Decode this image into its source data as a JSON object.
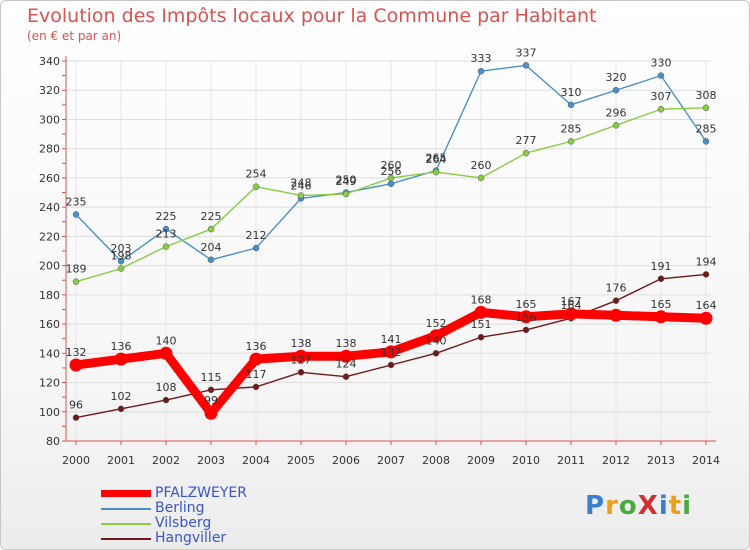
{
  "title": "Evolution des Impôts locaux pour la Commune par Habitant",
  "subtitle": "(en € et par an)",
  "logo_text": "ProXiti",
  "chart_data": {
    "type": "line",
    "x": [
      2000,
      2001,
      2002,
      2003,
      2004,
      2005,
      2006,
      2007,
      2008,
      2009,
      2010,
      2011,
      2012,
      2013,
      2014
    ],
    "ylim": [
      80,
      340
    ],
    "yticks": [
      80,
      100,
      120,
      140,
      160,
      180,
      200,
      220,
      240,
      260,
      280,
      300,
      320,
      340
    ],
    "grid": true,
    "legend_position": "bottom-left",
    "series": [
      {
        "name": "PFALZWEYER",
        "color": "#ff0000",
        "values": [
          132,
          136,
          140,
          99,
          136,
          138,
          138,
          141,
          152,
          168,
          165,
          167,
          166,
          165,
          164
        ],
        "labels": [
          "132",
          "136",
          "140",
          "99",
          "136",
          "138",
          "138",
          "141",
          "152",
          "168",
          "165",
          "167",
          "",
          "165",
          "164"
        ]
      },
      {
        "name": "Berling",
        "color": "#4a90c8",
        "values": [
          235,
          203,
          225,
          204,
          212,
          246,
          250,
          256,
          265,
          333,
          337,
          310,
          320,
          330,
          285
        ],
        "labels": [
          "235",
          "203",
          "225",
          "204",
          "212",
          "246",
          "250",
          "256",
          "265",
          "333",
          "337",
          "310",
          "320",
          "330",
          "285"
        ]
      },
      {
        "name": "Vilsberg",
        "color": "#88cc44",
        "values": [
          189,
          198,
          213,
          225,
          254,
          248,
          249,
          260,
          264,
          260,
          277,
          285,
          296,
          307,
          308
        ],
        "labels": [
          "189",
          "198",
          "213",
          "225",
          "254",
          "248",
          "249",
          "260",
          "264",
          "260",
          "277",
          "285",
          "296",
          "307",
          "308"
        ]
      },
      {
        "name": "Hangviller",
        "color": "#6e1a1a",
        "values": [
          96,
          102,
          108,
          115,
          117,
          127,
          124,
          132,
          140,
          151,
          156,
          164,
          176,
          191,
          194
        ],
        "labels": [
          "96",
          "102",
          "108",
          "115",
          "117",
          "127",
          "124",
          "132",
          "140",
          "151",
          "156",
          "164",
          "176",
          "191",
          "194"
        ]
      }
    ]
  }
}
